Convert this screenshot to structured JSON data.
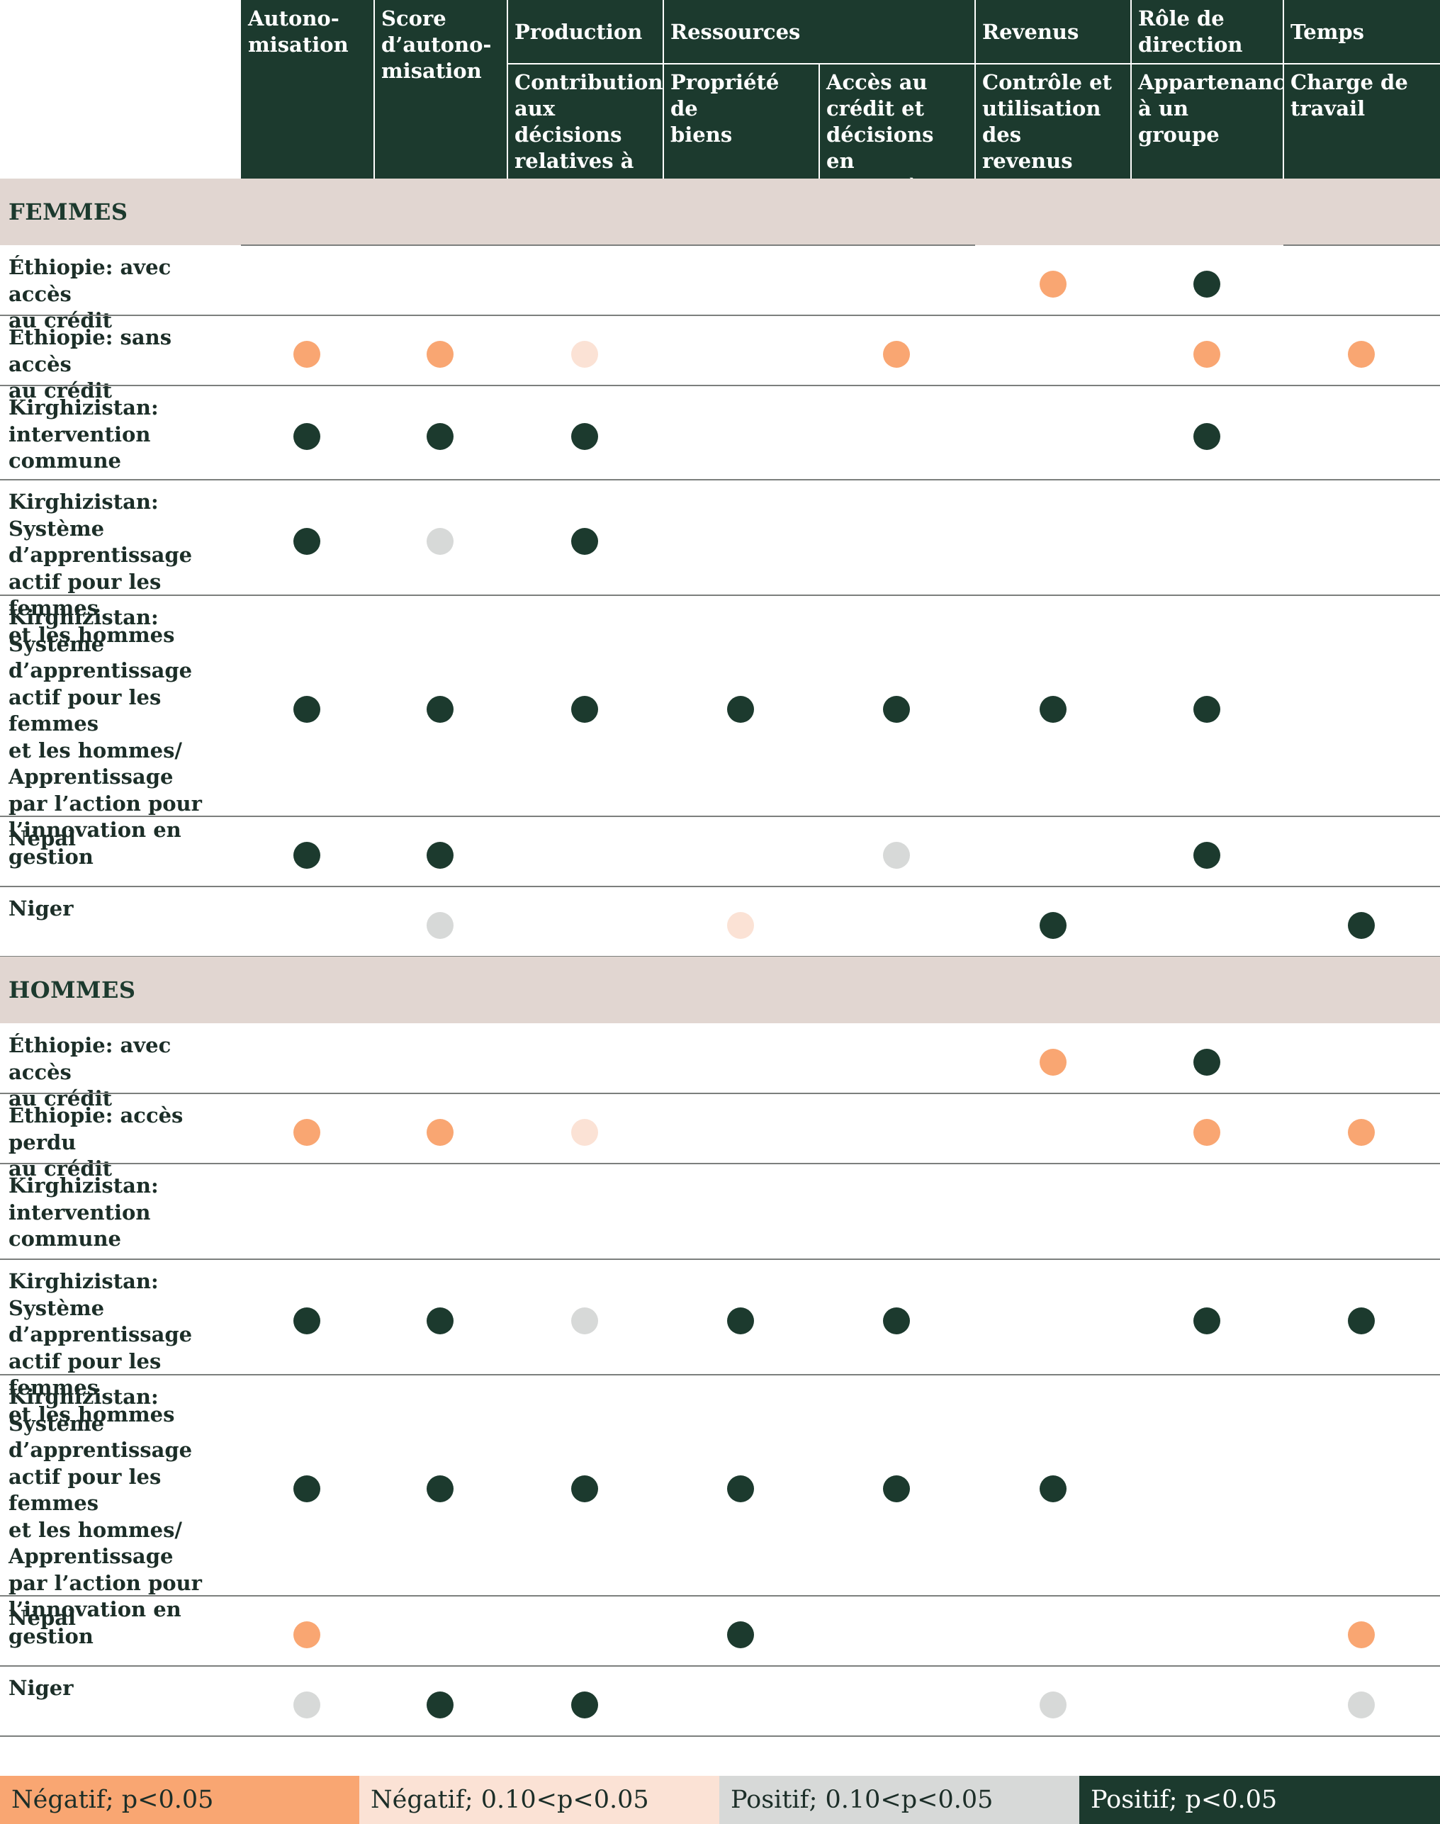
{
  "colors": {
    "header_bg": "#1c3a2e",
    "section_bg": "#e1d6d1",
    "neg_sig": "#f9a672",
    "neg_weak": "#fbe2d5",
    "pos_weak": "#d7d9d8",
    "pos_sig": "#1c3a2e"
  },
  "header": {
    "col_autonomisation": "Autono-\nmisation",
    "col_score": "Score\nd’autono-\nmisation",
    "group_production": "Production",
    "group_ressources": "Ressources",
    "group_revenus": "Revenus",
    "group_role": "Rôle de\ndirection",
    "group_temps": "Temps",
    "sub_contribution": "Contribution\naux décisions\nrelatives à la\nproduction",
    "sub_propriete": "Propriété de\nbiens",
    "sub_acces": "Accès au\ncrédit et\ndécisions en\nla matière",
    "sub_controle": "Contrôle et\nutilisation des\nrevenus",
    "sub_appartenance": "Appartenance\nà un groupe",
    "sub_charge": "Charge de\ntravail"
  },
  "sections": [
    {
      "label": "FEMMES",
      "rows": [
        {
          "label": "Éthiopie: avec accès\nau crédit",
          "cells": [
            null,
            null,
            null,
            null,
            null,
            "neg_sig",
            "pos_sig",
            null
          ]
        },
        {
          "label": "Éthiopie: sans accès\nau crédit",
          "cells": [
            "neg_sig",
            "neg_sig",
            "neg_weak",
            null,
            "neg_sig",
            null,
            "neg_sig",
            "neg_sig"
          ]
        },
        {
          "label": "Kirghizistan:\nintervention\ncommune",
          "cells": [
            "pos_sig",
            "pos_sig",
            "pos_sig",
            null,
            null,
            null,
            "pos_sig",
            null
          ]
        },
        {
          "label": "Kirghizistan: Système\nd’apprentissage\nactif pour les femmes\net les hommes",
          "cells": [
            "pos_sig",
            "pos_weak",
            "pos_sig",
            null,
            null,
            null,
            null,
            null
          ]
        },
        {
          "label": "Kirghizistan: Système\nd’apprentissage\nactif pour les femmes\net les hommes/\nApprentissage\npar l’action pour\nl’innovation en\ngestion",
          "cells": [
            "pos_sig",
            "pos_sig",
            "pos_sig",
            "pos_sig",
            "pos_sig",
            "pos_sig",
            "pos_sig",
            null
          ]
        },
        {
          "label": "Népal",
          "cells": [
            "pos_sig",
            "pos_sig",
            null,
            null,
            "pos_weak",
            null,
            "pos_sig",
            null
          ]
        },
        {
          "label": "Niger",
          "cells": [
            null,
            "pos_weak",
            null,
            "neg_weak",
            null,
            "pos_sig",
            null,
            "pos_sig"
          ]
        }
      ]
    },
    {
      "label": "HOMMES",
      "rows": [
        {
          "label": "Éthiopie: avec accès\nau crédit",
          "cells": [
            null,
            null,
            null,
            null,
            null,
            "neg_sig",
            "pos_sig",
            null
          ]
        },
        {
          "label": "Éthiopie: accès perdu\nau crédit",
          "cells": [
            "neg_sig",
            "neg_sig",
            "neg_weak",
            null,
            null,
            null,
            "neg_sig",
            "neg_sig"
          ]
        },
        {
          "label": "Kirghizistan:\nintervention\ncommune",
          "cells": [
            null,
            null,
            null,
            null,
            null,
            null,
            null,
            null
          ]
        },
        {
          "label": "Kirghizistan: Système\nd’apprentissage\nactif pour les femmes\net les hommes",
          "cells": [
            "pos_sig",
            "pos_sig",
            "pos_weak",
            "pos_sig",
            "pos_sig",
            null,
            "pos_sig",
            "pos_sig"
          ]
        },
        {
          "label": "Kirghizistan: Système\nd’apprentissage\nactif pour les femmes\net les hommes/\nApprentissage\npar l’action pour\nl’innovation en\ngestion",
          "cells": [
            "pos_sig",
            "pos_sig",
            "pos_sig",
            "pos_sig",
            "pos_sig",
            "pos_sig",
            null,
            null
          ]
        },
        {
          "label": "Népal",
          "cells": [
            "neg_sig",
            null,
            null,
            "pos_sig",
            null,
            null,
            null,
            "neg_sig"
          ]
        },
        {
          "label": "Niger",
          "cells": [
            "pos_weak",
            "pos_sig",
            "pos_sig",
            null,
            null,
            "pos_weak",
            null,
            "pos_weak"
          ]
        }
      ]
    }
  ],
  "legend": {
    "neg_sig": "Négatif; p<0.05",
    "neg_weak": "Négatif; 0.10<p<0.05",
    "pos_weak": "Positif; 0.10<p<0.05",
    "pos_sig": "Positif; p<0.05"
  }
}
